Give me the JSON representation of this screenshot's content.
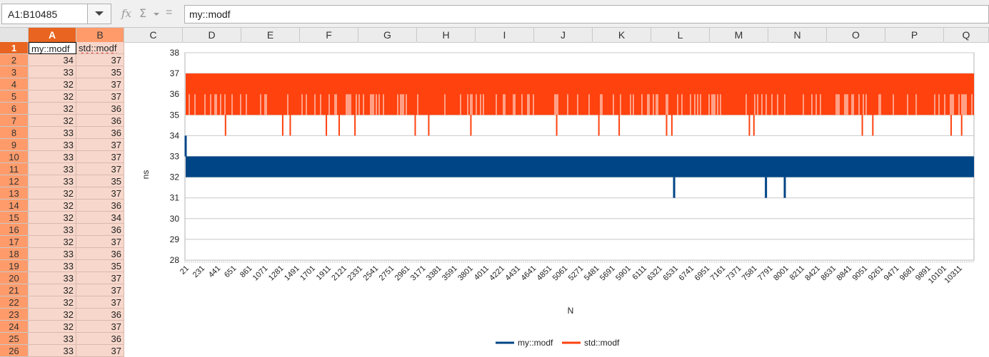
{
  "formula_bar": {
    "name_box": "A1:B10485",
    "fx_icon": "fx",
    "sigma_icon": "Σ",
    "equals_icon": "=",
    "formula": "my::modf"
  },
  "columns": [
    "A",
    "B",
    "C",
    "D",
    "E",
    "F",
    "G",
    "H",
    "I",
    "J",
    "K",
    "L",
    "M",
    "N",
    "O",
    "P",
    "Q"
  ],
  "rows": [
    {
      "n": "1",
      "a": "my::modf",
      "b": "std::modf"
    },
    {
      "n": "2",
      "a": "34",
      "b": "37"
    },
    {
      "n": "3",
      "a": "33",
      "b": "35"
    },
    {
      "n": "4",
      "a": "32",
      "b": "37"
    },
    {
      "n": "5",
      "a": "32",
      "b": "37"
    },
    {
      "n": "6",
      "a": "32",
      "b": "36"
    },
    {
      "n": "7",
      "a": "32",
      "b": "36"
    },
    {
      "n": "8",
      "a": "33",
      "b": "36"
    },
    {
      "n": "9",
      "a": "33",
      "b": "37"
    },
    {
      "n": "10",
      "a": "33",
      "b": "37"
    },
    {
      "n": "11",
      "a": "33",
      "b": "37"
    },
    {
      "n": "12",
      "a": "33",
      "b": "35"
    },
    {
      "n": "13",
      "a": "32",
      "b": "37"
    },
    {
      "n": "14",
      "a": "32",
      "b": "36"
    },
    {
      "n": "15",
      "a": "32",
      "b": "34"
    },
    {
      "n": "16",
      "a": "33",
      "b": "36"
    },
    {
      "n": "17",
      "a": "32",
      "b": "37"
    },
    {
      "n": "18",
      "a": "33",
      "b": "36"
    },
    {
      "n": "19",
      "a": "33",
      "b": "35"
    },
    {
      "n": "20",
      "a": "33",
      "b": "37"
    },
    {
      "n": "21",
      "a": "32",
      "b": "37"
    },
    {
      "n": "22",
      "a": "32",
      "b": "37"
    },
    {
      "n": "23",
      "a": "32",
      "b": "36"
    },
    {
      "n": "24",
      "a": "32",
      "b": "37"
    },
    {
      "n": "25",
      "a": "33",
      "b": "36"
    },
    {
      "n": "26",
      "a": "33",
      "b": "37"
    }
  ],
  "colors": {
    "accent_active": "#e86420",
    "selection": "#ff9b6b",
    "series_my": "#004586",
    "series_std": "#ff420e"
  },
  "chart_data": {
    "type": "line",
    "xlabel": "N",
    "ylabel": "ns",
    "ylim": [
      28,
      38
    ],
    "yticks": [
      "28",
      "29",
      "30",
      "31",
      "32",
      "33",
      "34",
      "35",
      "36",
      "37",
      "38"
    ],
    "x_tick_labels": [
      "21",
      "231",
      "441",
      "651",
      "861",
      "1071",
      "1281",
      "1491",
      "1701",
      "1911",
      "2121",
      "2331",
      "2541",
      "2751",
      "2961",
      "3171",
      "3381",
      "3591",
      "3801",
      "4011",
      "4221",
      "4431",
      "4641",
      "4851",
      "5061",
      "5271",
      "5481",
      "5691",
      "5901",
      "6111",
      "6321",
      "6531",
      "6741",
      "6951",
      "7161",
      "7371",
      "7581",
      "7791",
      "8001",
      "8211",
      "8421",
      "8631",
      "8841",
      "9051",
      "9261",
      "9471",
      "9681",
      "9891",
      "10101",
      "10311"
    ],
    "xlim": [
      1,
      10484
    ],
    "grid": true,
    "legend_position": "bottom",
    "series": [
      {
        "name": "my::modf",
        "color": "#004586",
        "typical_range": [
          32,
          33
        ],
        "spikes": [
          {
            "x": 1,
            "value": 34
          },
          {
            "x": 6500,
            "value": 31
          },
          {
            "x": 7720,
            "value": 31
          },
          {
            "x": 7970,
            "value": 31
          }
        ]
      },
      {
        "name": "std::modf",
        "color": "#ff420e",
        "typical_range": [
          35,
          37
        ],
        "dips_to_34_near_x": [
          540,
          1300,
          1400,
          1880,
          2050,
          2260,
          3060,
          3240,
          3800,
          4940,
          5500,
          5770,
          6400,
          6470,
          7500,
          7560,
          9000,
          9140,
          10180,
          10320
        ]
      }
    ]
  }
}
